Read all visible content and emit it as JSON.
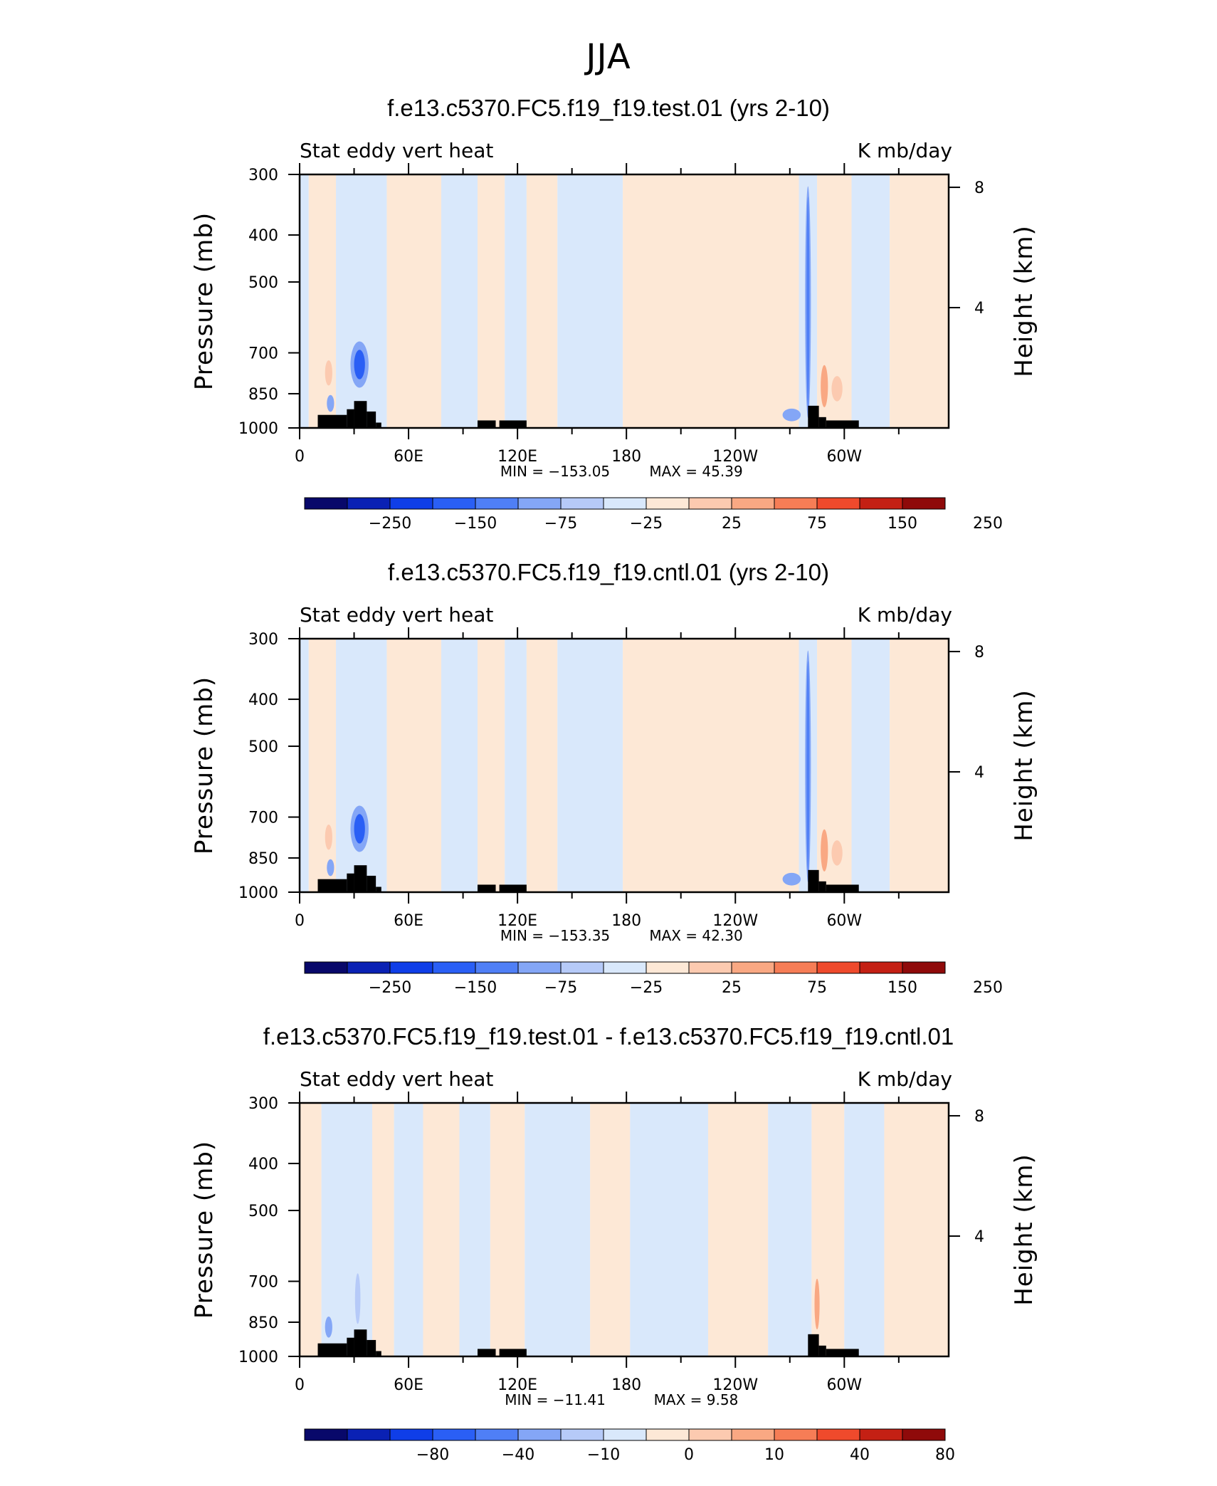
{
  "page_title": "JJA",
  "panels": [
    {
      "title": "f.e13.c5370.FC5.f19_f19.test.01 (yrs 2-10)",
      "subtitle_left": "Stat eddy vert heat",
      "subtitle_right": "K mb/day",
      "min_label": "MIN = −153.05",
      "max_label": "MAX =  45.39",
      "kind": "field"
    },
    {
      "title": "f.e13.c5370.FC5.f19_f19.cntl.01 (yrs 2-10)",
      "subtitle_left": "Stat eddy vert heat",
      "subtitle_right": "K mb/day",
      "min_label": "MIN = −153.35",
      "max_label": "MAX =  42.30",
      "kind": "field"
    },
    {
      "title": "f.e13.c5370.FC5.f19_f19.test.01 - f.e13.c5370.FC5.f19_f19.cntl.01",
      "subtitle_left": "Stat eddy vert heat",
      "subtitle_right": "K mb/day",
      "min_label": "MIN = −11.41",
      "max_label": "MAX =   9.58",
      "kind": "diff"
    }
  ],
  "chart_data": {
    "type": "heatmap",
    "xlabel": "",
    "ylabel_left": "Pressure (mb)",
    "ylabel_right": "Height (km)",
    "x_ticks": [
      "0",
      "60E",
      "120E",
      "180",
      "120W",
      "60W"
    ],
    "x_tick_values": [
      0,
      60,
      120,
      180,
      240,
      300
    ],
    "xlim": [
      0,
      357.5
    ],
    "y_ticks": [
      "300",
      "400",
      "500",
      "700",
      "850",
      "1000"
    ],
    "y_tick_values": [
      300,
      400,
      500,
      700,
      850,
      1000
    ],
    "ylim": [
      1000,
      300
    ],
    "y_scale": "log",
    "height_ticks": [
      "8",
      "4"
    ],
    "height_tick_values": [
      8,
      4
    ],
    "colors": [
      "#08086a",
      "#0a21b4",
      "#0f3ee8",
      "#2a5ff5",
      "#4f7ff6",
      "#84a6f6",
      "#b6caf8",
      "#d9e8fb",
      "#fde8d6",
      "#fccab0",
      "#f9a883",
      "#f67d56",
      "#ef4a2c",
      "#c42014",
      "#8f0a0a"
    ],
    "colorbar_field": [
      "−250",
      "−150",
      "−75",
      "−25",
      "25",
      "75",
      "150",
      "250"
    ],
    "colorbar_diff": [
      "−80",
      "−40",
      "−10",
      "0",
      "10",
      "40",
      "80"
    ],
    "field_bands": [
      {
        "x0": 0,
        "x1": 5,
        "color": "#d9e8fb"
      },
      {
        "x0": 5,
        "x1": 20,
        "color": "#fde8d6"
      },
      {
        "x0": 20,
        "x1": 48,
        "color": "#d9e8fb"
      },
      {
        "x0": 48,
        "x1": 78,
        "color": "#fde8d6"
      },
      {
        "x0": 78,
        "x1": 98,
        "color": "#d9e8fb"
      },
      {
        "x0": 98,
        "x1": 113,
        "color": "#fde8d6"
      },
      {
        "x0": 113,
        "x1": 125,
        "color": "#d9e8fb"
      },
      {
        "x0": 125,
        "x1": 142,
        "color": "#fde8d6"
      },
      {
        "x0": 142,
        "x1": 178,
        "color": "#d9e8fb"
      },
      {
        "x0": 178,
        "x1": 275,
        "color": "#fde8d6"
      },
      {
        "x0": 275,
        "x1": 285,
        "color": "#d9e8fb"
      },
      {
        "x0": 285,
        "x1": 304,
        "color": "#fde8d6"
      },
      {
        "x0": 304,
        "x1": 325,
        "color": "#d9e8fb"
      },
      {
        "x0": 325,
        "x1": 357.5,
        "color": "#fde8d6"
      }
    ],
    "diff_bands": [
      {
        "x0": 0,
        "x1": 12,
        "color": "#fde8d6"
      },
      {
        "x0": 12,
        "x1": 40,
        "color": "#d9e8fb"
      },
      {
        "x0": 40,
        "x1": 52,
        "color": "#fde8d6"
      },
      {
        "x0": 52,
        "x1": 68,
        "color": "#d9e8fb"
      },
      {
        "x0": 68,
        "x1": 88,
        "color": "#fde8d6"
      },
      {
        "x0": 88,
        "x1": 105,
        "color": "#d9e8fb"
      },
      {
        "x0": 105,
        "x1": 124,
        "color": "#fde8d6"
      },
      {
        "x0": 124,
        "x1": 160,
        "color": "#d9e8fb"
      },
      {
        "x0": 160,
        "x1": 182,
        "color": "#fde8d6"
      },
      {
        "x0": 182,
        "x1": 225,
        "color": "#d9e8fb"
      },
      {
        "x0": 225,
        "x1": 258,
        "color": "#fde8d6"
      },
      {
        "x0": 258,
        "x1": 282,
        "color": "#d9e8fb"
      },
      {
        "x0": 282,
        "x1": 300,
        "color": "#fde8d6"
      },
      {
        "x0": 300,
        "x1": 322,
        "color": "#d9e8fb"
      },
      {
        "x0": 322,
        "x1": 357.5,
        "color": "#fde8d6"
      }
    ],
    "field_blobs": [
      {
        "x": 33,
        "p": 740,
        "rx": 5,
        "rp": 0.11,
        "color": "#84a6f6"
      },
      {
        "x": 33,
        "p": 740,
        "rx": 3,
        "rp": 0.07,
        "color": "#2a5ff5"
      },
      {
        "x": 16,
        "p": 770,
        "rx": 2,
        "rp": 0.06,
        "color": "#fccab0"
      },
      {
        "x": 17,
        "p": 890,
        "rx": 2,
        "rp": 0.04,
        "color": "#84a6f6"
      },
      {
        "x": 280,
        "p": 550,
        "rx": 1.6,
        "rp": 0.55,
        "color": "#84a6f6"
      },
      {
        "x": 280,
        "p": 550,
        "rx": 0.8,
        "rp": 0.5,
        "color": "#4f7ff6"
      },
      {
        "x": 289,
        "p": 820,
        "rx": 2,
        "rp": 0.1,
        "color": "#f9a883"
      },
      {
        "x": 296,
        "p": 830,
        "rx": 3,
        "rp": 0.06,
        "color": "#fccab0"
      },
      {
        "x": 271,
        "p": 940,
        "rx": 5,
        "rp": 0.03,
        "color": "#84a6f6"
      }
    ],
    "diff_blobs": [
      {
        "x": 16,
        "p": 870,
        "rx": 2,
        "rp": 0.05,
        "color": "#84a6f6"
      },
      {
        "x": 32,
        "p": 760,
        "rx": 1.5,
        "rp": 0.12,
        "color": "#b6caf8"
      },
      {
        "x": 285,
        "p": 780,
        "rx": 1.4,
        "rp": 0.12,
        "color": "#f9a883"
      }
    ],
    "topography": [
      {
        "x0": 10,
        "x1": 26,
        "p": 940
      },
      {
        "x0": 26,
        "x1": 30,
        "p": 915
      },
      {
        "x0": 30,
        "x1": 37,
        "p": 880
      },
      {
        "x0": 37,
        "x1": 42,
        "p": 925
      },
      {
        "x0": 42,
        "x1": 45,
        "p": 975
      },
      {
        "x0": 98,
        "x1": 108,
        "p": 965
      },
      {
        "x0": 110,
        "x1": 125,
        "p": 965
      },
      {
        "x0": 280,
        "x1": 286,
        "p": 900
      },
      {
        "x0": 286,
        "x1": 290,
        "p": 950
      },
      {
        "x0": 290,
        "x1": 308,
        "p": 965
      }
    ]
  }
}
